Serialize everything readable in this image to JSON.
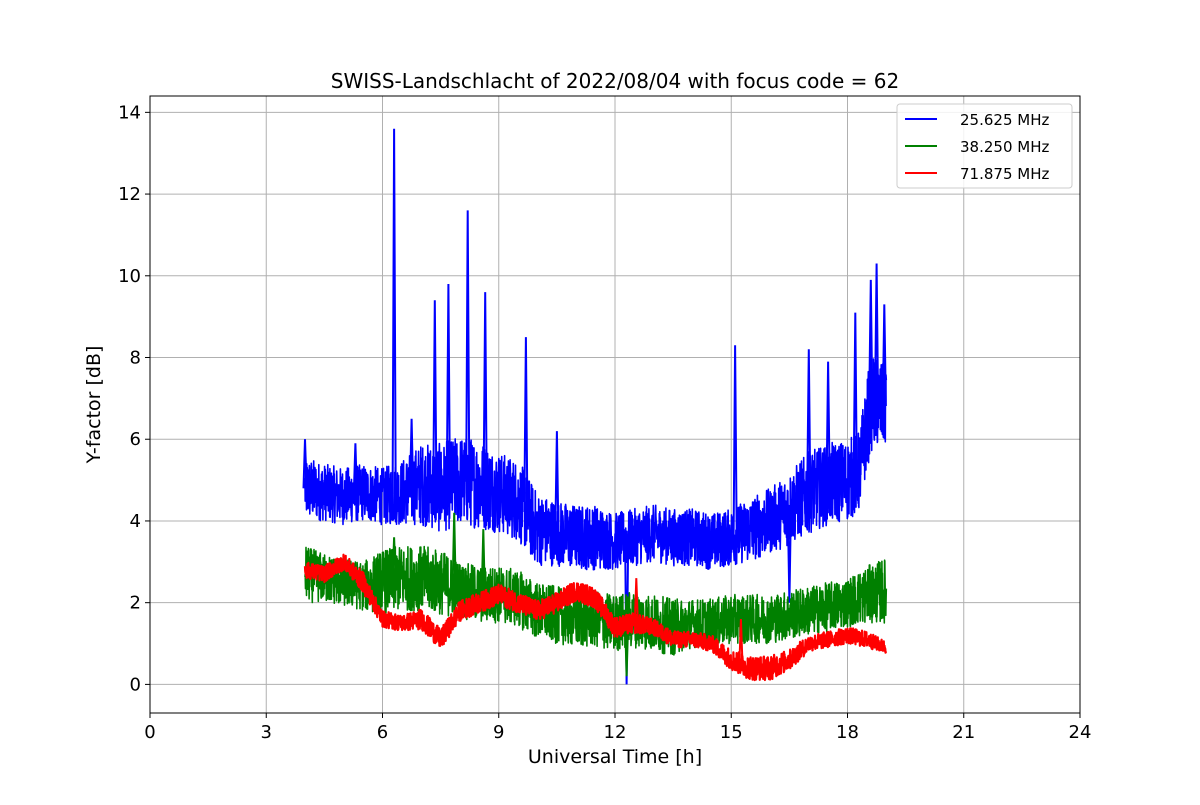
{
  "chart_data": {
    "type": "line",
    "title": "SWISS-Landschlacht of 2022/08/04 with focus code = 62",
    "xlabel": "Universal Time [h]",
    "ylabel": "Y-factor [dB]",
    "xlim": [
      0,
      24
    ],
    "ylim": [
      -0.7,
      14.4
    ],
    "xticks": [
      0,
      3,
      6,
      9,
      12,
      15,
      18,
      21,
      24
    ],
    "yticks": [
      0,
      2,
      4,
      6,
      8,
      10,
      12,
      14
    ],
    "grid": true,
    "legend_position": "top-right",
    "series": [
      {
        "name": "25.625 MHz",
        "color": "#0000ff",
        "x": [
          4.0,
          4.5,
          5.0,
          5.5,
          6.0,
          6.5,
          7.0,
          7.5,
          8.0,
          8.5,
          9.0,
          9.5,
          10.0,
          10.5,
          11.0,
          11.5,
          12.0,
          12.5,
          13.0,
          13.5,
          14.0,
          14.5,
          15.0,
          15.5,
          16.0,
          16.5,
          17.0,
          17.5,
          18.0,
          18.3,
          18.6,
          19.0
        ],
        "y": [
          4.8,
          4.7,
          4.6,
          4.7,
          4.6,
          4.7,
          4.9,
          4.8,
          5.0,
          4.9,
          4.7,
          4.5,
          3.8,
          3.7,
          3.6,
          3.6,
          3.5,
          3.6,
          3.7,
          3.6,
          3.6,
          3.5,
          3.6,
          3.8,
          4.0,
          4.3,
          4.7,
          4.9,
          5.0,
          5.2,
          6.9,
          6.8
        ],
        "amplitude": [
          0.8,
          0.7,
          0.7,
          0.7,
          0.7,
          0.8,
          1.0,
          1.1,
          1.1,
          1.1,
          1.0,
          1.0,
          0.9,
          0.8,
          0.8,
          0.8,
          0.7,
          0.7,
          0.7,
          0.7,
          0.7,
          0.7,
          0.7,
          0.8,
          0.8,
          0.9,
          1.0,
          1.0,
          1.0,
          1.0,
          1.2,
          1.0
        ],
        "spikes": [
          [
            6.3,
            13.6
          ],
          [
            8.2,
            11.6
          ],
          [
            7.7,
            9.8
          ],
          [
            7.35,
            9.4
          ],
          [
            8.65,
            9.6
          ],
          [
            9.7,
            8.5
          ],
          [
            15.1,
            8.3
          ],
          [
            17.0,
            8.2
          ],
          [
            17.5,
            7.9
          ],
          [
            18.2,
            9.1
          ],
          [
            18.6,
            9.9
          ],
          [
            18.75,
            10.3
          ],
          [
            18.95,
            9.3
          ],
          [
            10.5,
            6.2
          ],
          [
            6.75,
            6.5
          ],
          [
            5.3,
            5.9
          ],
          [
            4.0,
            6.0
          ],
          [
            12.3,
            0.0
          ],
          [
            16.5,
            2.0
          ]
        ]
      },
      {
        "name": "38.250 MHz",
        "color": "#008000",
        "x": [
          4.0,
          4.5,
          5.0,
          5.5,
          6.0,
          6.5,
          7.0,
          7.5,
          8.0,
          8.5,
          9.0,
          9.5,
          10.0,
          10.5,
          11.0,
          11.5,
          12.0,
          12.5,
          13.0,
          13.5,
          14.0,
          14.5,
          15.0,
          15.5,
          16.0,
          16.5,
          17.0,
          17.5,
          18.0,
          18.5,
          19.0
        ],
        "y": [
          2.7,
          2.6,
          2.5,
          2.4,
          2.5,
          2.6,
          2.6,
          2.5,
          2.3,
          2.2,
          2.2,
          2.1,
          1.8,
          1.7,
          1.6,
          1.6,
          1.5,
          1.6,
          1.5,
          1.4,
          1.5,
          1.5,
          1.6,
          1.6,
          1.6,
          1.7,
          1.8,
          1.9,
          2.0,
          2.2,
          2.3
        ],
        "amplitude": [
          0.7,
          0.6,
          0.6,
          0.6,
          0.8,
          0.8,
          0.8,
          0.8,
          0.7,
          0.7,
          0.7,
          0.7,
          0.7,
          0.7,
          0.7,
          0.7,
          0.7,
          0.7,
          0.7,
          0.7,
          0.6,
          0.6,
          0.6,
          0.6,
          0.6,
          0.6,
          0.6,
          0.6,
          0.6,
          0.7,
          0.8
        ],
        "spikes": [
          [
            7.85,
            4.2
          ],
          [
            8.6,
            3.8
          ],
          [
            6.3,
            3.6
          ],
          [
            12.3,
            0.2
          ]
        ]
      },
      {
        "name": "71.875 MHz",
        "color": "#ff0000",
        "x": [
          4.0,
          4.5,
          5.0,
          5.5,
          6.0,
          6.5,
          7.0,
          7.5,
          8.0,
          8.5,
          9.0,
          9.5,
          10.0,
          10.5,
          11.0,
          11.5,
          12.0,
          12.5,
          13.0,
          13.5,
          14.0,
          14.5,
          15.0,
          15.5,
          16.0,
          16.5,
          17.0,
          17.5,
          18.0,
          18.5,
          19.0
        ],
        "y": [
          2.8,
          2.7,
          3.0,
          2.5,
          1.6,
          1.5,
          1.6,
          1.1,
          1.8,
          2.0,
          2.2,
          2.0,
          1.8,
          2.0,
          2.3,
          2.1,
          1.4,
          1.5,
          1.4,
          1.1,
          1.1,
          1.0,
          0.6,
          0.4,
          0.4,
          0.6,
          1.0,
          1.1,
          1.2,
          1.1,
          0.9
        ],
        "amplitude": [
          0.2,
          0.2,
          0.2,
          0.25,
          0.2,
          0.2,
          0.25,
          0.25,
          0.25,
          0.25,
          0.25,
          0.25,
          0.25,
          0.25,
          0.25,
          0.25,
          0.25,
          0.25,
          0.2,
          0.2,
          0.2,
          0.2,
          0.25,
          0.3,
          0.3,
          0.25,
          0.2,
          0.2,
          0.2,
          0.2,
          0.15
        ],
        "spikes": [
          [
            12.55,
            2.6
          ],
          [
            15.25,
            1.6
          ]
        ]
      }
    ]
  }
}
